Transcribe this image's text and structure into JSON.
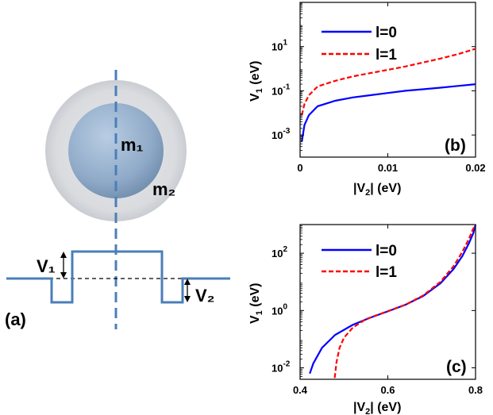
{
  "panel_a": {
    "label": "(a)",
    "inner_mass": "m₁",
    "outer_mass": "m₂",
    "v1_label": "V₁",
    "v2_label": "V₂",
    "colors": {
      "well": "#4a7fb8",
      "inner_sphere": "#8fa9c6",
      "outer_shell": "#d8dade"
    }
  },
  "chart_data": [
    {
      "type": "line",
      "panel_label": "(b)",
      "xlabel": "|V_2| (eV)",
      "ylabel": "V_1 (eV)",
      "xlim": [
        0,
        0.02
      ],
      "ylim_log10": [
        -4,
        3
      ],
      "yscale": "log",
      "xticks": [
        0,
        0.01,
        0.02
      ],
      "xtick_labels": [
        "0",
        "0.01",
        "0.02"
      ],
      "yticks_log10": [
        -3,
        -1,
        1
      ],
      "ytick_labels": [
        "10",
        "10",
        "10"
      ],
      "ytick_exponents": [
        "-3",
        "-1",
        "1"
      ],
      "legend_position": "top-left",
      "series": [
        {
          "name": "l=0",
          "color": "#0000ff",
          "dash": "solid",
          "x": [
            0.0002,
            0.0005,
            0.001,
            0.002,
            0.004,
            0.006,
            0.008,
            0.01,
            0.012,
            0.014,
            0.016,
            0.018,
            0.02
          ],
          "log10_y": [
            -3.3,
            -2.55,
            -2.1,
            -1.7,
            -1.45,
            -1.3,
            -1.2,
            -1.1,
            -1.0,
            -0.93,
            -0.86,
            -0.78,
            -0.7
          ]
        },
        {
          "name": "l=1",
          "color": "#ff0000",
          "dash": "dashed",
          "x": [
            0.0002,
            0.0005,
            0.001,
            0.002,
            0.004,
            0.006,
            0.008,
            0.01,
            0.012,
            0.014,
            0.016,
            0.018,
            0.02
          ],
          "log10_y": [
            -2.1,
            -1.6,
            -1.2,
            -0.8,
            -0.55,
            -0.35,
            -0.2,
            -0.05,
            0.1,
            0.28,
            0.46,
            0.66,
            0.9
          ]
        }
      ]
    },
    {
      "type": "line",
      "panel_label": "(c)",
      "xlabel": "|V_2| (eV)",
      "ylabel": "V_1 (eV)",
      "xlim": [
        0.4,
        0.8
      ],
      "ylim_log10": [
        -2.4,
        3
      ],
      "yscale": "log",
      "xticks": [
        0.4,
        0.6,
        0.8
      ],
      "xtick_labels": [
        "0.4",
        "0.6",
        "0.8"
      ],
      "yticks_log10": [
        -2,
        0,
        2
      ],
      "ytick_labels": [
        "10",
        "10",
        "10"
      ],
      "ytick_exponents": [
        "-2",
        "0",
        "2"
      ],
      "legend_position": "top-left",
      "series": [
        {
          "name": "l=0",
          "color": "#0000ff",
          "dash": "solid",
          "x": [
            0.422,
            0.43,
            0.45,
            0.48,
            0.52,
            0.56,
            0.6,
            0.64,
            0.68,
            0.72,
            0.75,
            0.77,
            0.785,
            0.795,
            0.8
          ],
          "log10_y": [
            -2.2,
            -1.85,
            -1.3,
            -0.85,
            -0.5,
            -0.25,
            -0.03,
            0.2,
            0.5,
            0.95,
            1.45,
            1.9,
            2.35,
            2.7,
            3.0
          ]
        },
        {
          "name": "l=1",
          "color": "#ff0000",
          "dash": "dashed",
          "x": [
            0.479,
            0.483,
            0.49,
            0.5,
            0.52,
            0.55,
            0.6,
            0.64,
            0.68,
            0.72,
            0.75,
            0.77,
            0.785,
            0.793,
            0.8
          ],
          "log10_y": [
            -2.35,
            -1.8,
            -1.3,
            -0.95,
            -0.6,
            -0.3,
            -0.02,
            0.2,
            0.52,
            1.0,
            1.55,
            2.05,
            2.5,
            2.8,
            3.0
          ]
        }
      ]
    }
  ]
}
